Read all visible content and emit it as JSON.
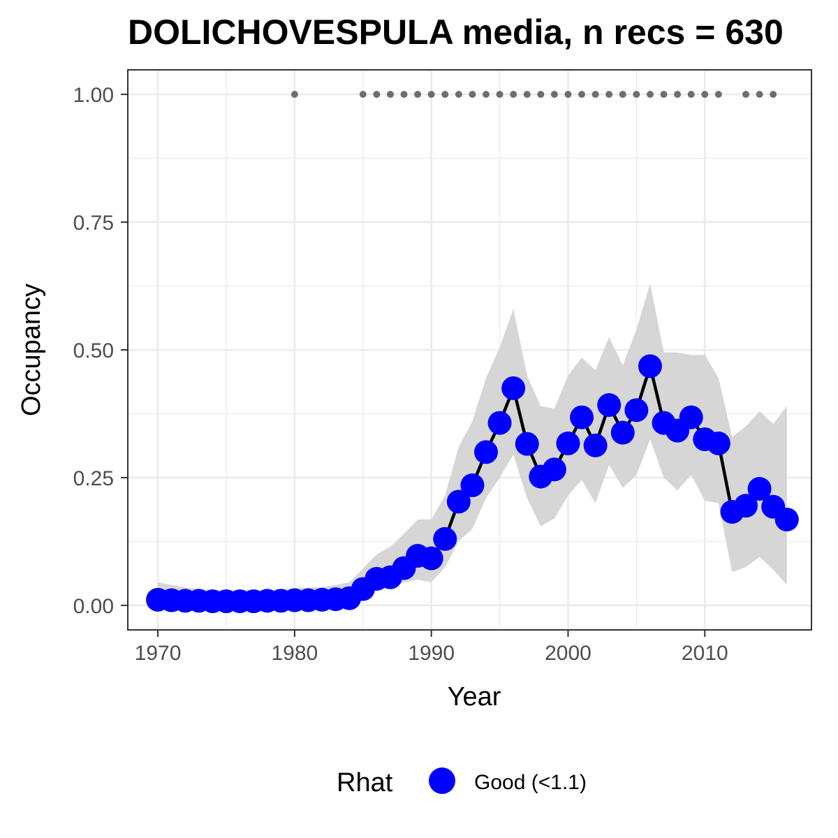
{
  "chart_data": {
    "type": "line",
    "title": "DOLICHOVESPULA media, n recs = 630",
    "xlabel": "Year",
    "ylabel": "Occupancy",
    "xlim": [
      1967.8,
      2017.8
    ],
    "ylim": [
      -0.048,
      1.048
    ],
    "x_ticks": [
      1970,
      1980,
      1990,
      2000,
      2010
    ],
    "y_ticks": [
      0.0,
      0.25,
      0.5,
      0.75,
      1.0
    ],
    "x_tick_labels": [
      "1970",
      "1980",
      "1990",
      "2000",
      "2010"
    ],
    "y_tick_labels": [
      "0.00",
      "0.25",
      "0.50",
      "0.75",
      "1.00"
    ],
    "grid": true,
    "legend": {
      "title": "Rhat",
      "position": "bottom",
      "entries": [
        {
          "label": "Good (<1.1)",
          "color": "#0000ff"
        }
      ]
    },
    "colors": {
      "points": "#0000ff",
      "line": "#000000",
      "ribbon": "#d6d6d6",
      "record_dots": "#6e6e6e",
      "grid": "#ebebeb",
      "panel_border": "#333333"
    },
    "series": [
      {
        "type": "line",
        "x": [
          1970,
          1971,
          1972,
          1973,
          1974,
          1975,
          1976,
          1977,
          1978,
          1979,
          1980,
          1981,
          1982,
          1983,
          1984,
          1985,
          1986,
          1987,
          1988,
          1989,
          1990,
          1991,
          1992,
          1993,
          1994,
          1995,
          1996,
          1997,
          1998,
          1999,
          2000,
          2001,
          2002,
          2003,
          2004,
          2005,
          2006,
          2007,
          2008,
          2009,
          2010,
          2011,
          2012,
          2013,
          2014,
          2015,
          2016
        ],
        "y": [
          0.011,
          0.01,
          0.009,
          0.009,
          0.008,
          0.008,
          0.008,
          0.008,
          0.009,
          0.009,
          0.01,
          0.01,
          0.011,
          0.012,
          0.014,
          0.032,
          0.052,
          0.055,
          0.073,
          0.097,
          0.092,
          0.13,
          0.203,
          0.235,
          0.3,
          0.357,
          0.425,
          0.316,
          0.252,
          0.266,
          0.317,
          0.368,
          0.313,
          0.392,
          0.338,
          0.382,
          0.468,
          0.357,
          0.342,
          0.368,
          0.325,
          0.317,
          0.183,
          0.195,
          0.228,
          0.193,
          0.168
        ],
        "lower": [
          0.001,
          0.001,
          0.001,
          0.001,
          0.001,
          0.001,
          0.001,
          0.001,
          0.001,
          0.001,
          0.001,
          0.001,
          0.001,
          0.002,
          0.003,
          0.015,
          0.03,
          0.033,
          0.045,
          0.05,
          0.045,
          0.075,
          0.125,
          0.15,
          0.21,
          0.25,
          0.295,
          0.21,
          0.155,
          0.17,
          0.215,
          0.245,
          0.2,
          0.275,
          0.23,
          0.255,
          0.325,
          0.25,
          0.225,
          0.255,
          0.205,
          0.2,
          0.065,
          0.075,
          0.095,
          0.07,
          0.04
        ],
        "upper": [
          0.045,
          0.04,
          0.035,
          0.032,
          0.03,
          0.03,
          0.03,
          0.03,
          0.03,
          0.032,
          0.034,
          0.035,
          0.036,
          0.04,
          0.045,
          0.072,
          0.1,
          0.115,
          0.14,
          0.168,
          0.168,
          0.215,
          0.31,
          0.36,
          0.445,
          0.505,
          0.58,
          0.45,
          0.39,
          0.385,
          0.45,
          0.485,
          0.46,
          0.525,
          0.47,
          0.54,
          0.63,
          0.495,
          0.495,
          0.49,
          0.49,
          0.445,
          0.33,
          0.35,
          0.38,
          0.355,
          0.39
        ]
      },
      {
        "type": "scatter",
        "x": [
          1980,
          1985,
          1986,
          1987,
          1988,
          1989,
          1990,
          1991,
          1992,
          1993,
          1994,
          1995,
          1996,
          1997,
          1998,
          1999,
          2000,
          2001,
          2002,
          2003,
          2004,
          2005,
          2006,
          2007,
          2008,
          2009,
          2010,
          2011,
          2013,
          2014,
          2015
        ],
        "y": [
          1,
          1,
          1,
          1,
          1,
          1,
          1,
          1,
          1,
          1,
          1,
          1,
          1,
          1,
          1,
          1,
          1,
          1,
          1,
          1,
          1,
          1,
          1,
          1,
          1,
          1,
          1,
          1,
          1,
          1,
          1
        ]
      }
    ]
  }
}
